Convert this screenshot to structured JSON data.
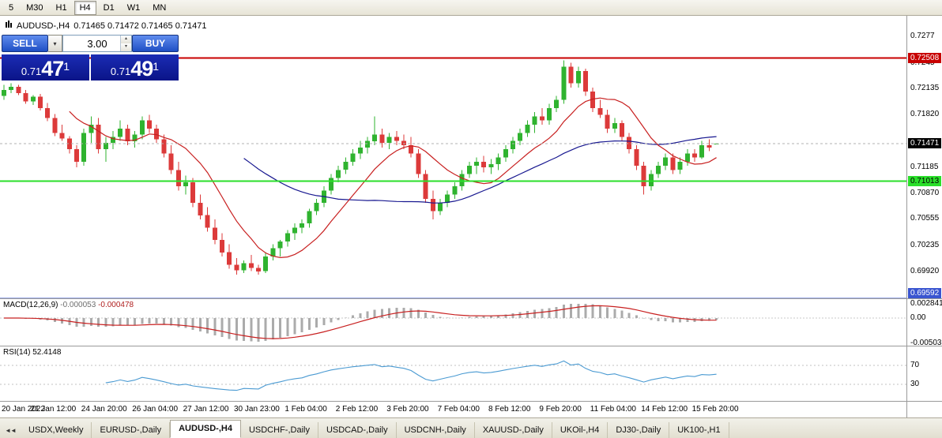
{
  "toolbar": {
    "timeframes": [
      {
        "label": "5",
        "active": false
      },
      {
        "label": "M30",
        "active": false
      },
      {
        "label": "H1",
        "active": false
      },
      {
        "label": "H4",
        "active": true
      },
      {
        "label": "D1",
        "active": false
      },
      {
        "label": "W1",
        "active": false
      },
      {
        "label": "MN",
        "active": false
      }
    ]
  },
  "chart": {
    "symbol_title": "AUDUSD-,H4",
    "ohlc_text": "0.71465 0.71472 0.71465 0.71471",
    "trade_panel": {
      "sell_label": "SELL",
      "buy_label": "BUY",
      "volume": "3.00",
      "sell_price_prefix": "0.71",
      "sell_price_big": "47",
      "sell_price_sup": "1",
      "buy_price_prefix": "0.71",
      "buy_price_big": "49",
      "buy_price_sup": "1"
    }
  },
  "chart_data": {
    "type": "candlestick",
    "title": "AUDUSD-,H4",
    "symbol": "AUDUSD",
    "timeframe": "H4",
    "ylim": [
      0.69592,
      0.7302
    ],
    "price_axis_labels": [
      "0.7277",
      "0.7245",
      "0.72135",
      "0.71820",
      "0.71185",
      "0.70870",
      "0.70555",
      "0.70235",
      "0.69920"
    ],
    "hlines": [
      {
        "name": "resistance-line",
        "value": 0.72508,
        "label": "0.72508",
        "color": "#C80000",
        "width": 1.6,
        "box_bg": "#C80000",
        "box_fg": "#FFFFFF"
      },
      {
        "name": "support-line",
        "value": 0.71013,
        "label": "0.71013",
        "color": "#2ADF2A",
        "width": 2,
        "box_bg": "#2ADF2A",
        "box_fg": "#000000"
      },
      {
        "name": "low-line",
        "value": 0.69592,
        "label": "0.69592",
        "color": "#3A55D0",
        "width": 1.4,
        "box_bg": "#3A55D0",
        "box_fg": "#FFFFFF"
      }
    ],
    "bid_marker": {
      "value": 0.71471,
      "label": "0.71471",
      "box_bg": "#000000",
      "box_fg": "#FFFFFF"
    },
    "moving_averages": [
      {
        "period": 34,
        "color": "#181890",
        "name": "ma-slow"
      },
      {
        "period": 10,
        "color": "#C82020",
        "name": "ma-fast"
      }
    ],
    "time_labels": [
      {
        "i": 0,
        "t": "20 Jan 2022"
      },
      {
        "i": 7,
        "t": "21 Jan 12:00"
      },
      {
        "i": 14,
        "t": "24 Jan 20:00"
      },
      {
        "i": 21,
        "t": "26 Jan 04:00"
      },
      {
        "i": 28,
        "t": "27 Jan 12:00"
      },
      {
        "i": 35,
        "t": "30 Jan 23:00"
      },
      {
        "i": 42,
        "t": "1 Feb 04:00"
      },
      {
        "i": 49,
        "t": "2 Feb 12:00"
      },
      {
        "i": 56,
        "t": "3 Feb 20:00"
      },
      {
        "i": 63,
        "t": "7 Feb 04:00"
      },
      {
        "i": 70,
        "t": "8 Feb 12:00"
      },
      {
        "i": 77,
        "t": "9 Feb 20:00"
      },
      {
        "i": 84,
        "t": "11 Feb 04:00"
      },
      {
        "i": 91,
        "t": "14 Feb 12:00"
      },
      {
        "i": 98,
        "t": "15 Feb 20:00"
      }
    ],
    "candles": [
      [
        0.7205,
        0.7218,
        0.72,
        0.7212
      ],
      [
        0.7212,
        0.722,
        0.7208,
        0.7216
      ],
      [
        0.7216,
        0.7218,
        0.7206,
        0.7208
      ],
      [
        0.7208,
        0.7212,
        0.7195,
        0.7198
      ],
      [
        0.7198,
        0.7206,
        0.7194,
        0.7204
      ],
      [
        0.7204,
        0.7207,
        0.7187,
        0.719
      ],
      [
        0.719,
        0.7196,
        0.7174,
        0.7178
      ],
      [
        0.7178,
        0.7183,
        0.7156,
        0.716
      ],
      [
        0.716,
        0.717,
        0.715,
        0.7153
      ],
      [
        0.7153,
        0.7156,
        0.7135,
        0.714
      ],
      [
        0.714,
        0.7145,
        0.7118,
        0.7125
      ],
      [
        0.7125,
        0.7165,
        0.712,
        0.716
      ],
      [
        0.716,
        0.718,
        0.7148,
        0.717
      ],
      [
        0.717,
        0.7178,
        0.7135,
        0.714
      ],
      [
        0.714,
        0.7155,
        0.7125,
        0.7148
      ],
      [
        0.7148,
        0.7162,
        0.714,
        0.7155
      ],
      [
        0.7155,
        0.7175,
        0.715,
        0.7165
      ],
      [
        0.7165,
        0.717,
        0.7145,
        0.715
      ],
      [
        0.715,
        0.7162,
        0.7142,
        0.7158
      ],
      [
        0.7158,
        0.718,
        0.7152,
        0.7175
      ],
      [
        0.7175,
        0.7182,
        0.716,
        0.7165
      ],
      [
        0.7165,
        0.717,
        0.7148,
        0.7152
      ],
      [
        0.7152,
        0.7158,
        0.713,
        0.7135
      ],
      [
        0.7135,
        0.7145,
        0.711,
        0.7115
      ],
      [
        0.7115,
        0.7125,
        0.709,
        0.7095
      ],
      [
        0.7095,
        0.7108,
        0.7085,
        0.71
      ],
      [
        0.71,
        0.7105,
        0.707,
        0.7075
      ],
      [
        0.7075,
        0.7085,
        0.7055,
        0.706
      ],
      [
        0.706,
        0.707,
        0.704,
        0.7045
      ],
      [
        0.7045,
        0.7055,
        0.7025,
        0.703
      ],
      [
        0.703,
        0.7038,
        0.701,
        0.7015
      ],
      [
        0.7015,
        0.7025,
        0.6995,
        0.7
      ],
      [
        0.7,
        0.7008,
        0.6988,
        0.6993
      ],
      [
        0.6993,
        0.7005,
        0.699,
        0.7002
      ],
      [
        0.7002,
        0.7012,
        0.6992,
        0.6996
      ],
      [
        0.6996,
        0.7,
        0.6988,
        0.6992
      ],
      [
        0.6992,
        0.7015,
        0.699,
        0.701
      ],
      [
        0.701,
        0.7025,
        0.7005,
        0.702
      ],
      [
        0.702,
        0.703,
        0.701,
        0.7028
      ],
      [
        0.7028,
        0.7042,
        0.7022,
        0.7038
      ],
      [
        0.7038,
        0.705,
        0.703,
        0.7045
      ],
      [
        0.7045,
        0.7055,
        0.7038,
        0.705
      ],
      [
        0.705,
        0.7068,
        0.7045,
        0.7065
      ],
      [
        0.7065,
        0.708,
        0.706,
        0.7075
      ],
      [
        0.7075,
        0.7095,
        0.707,
        0.709
      ],
      [
        0.709,
        0.711,
        0.7085,
        0.7105
      ],
      [
        0.7105,
        0.712,
        0.71,
        0.7115
      ],
      [
        0.7115,
        0.713,
        0.711,
        0.7125
      ],
      [
        0.7125,
        0.714,
        0.712,
        0.7135
      ],
      [
        0.7135,
        0.715,
        0.7128,
        0.7142
      ],
      [
        0.7142,
        0.7155,
        0.7135,
        0.715
      ],
      [
        0.715,
        0.718,
        0.7145,
        0.7158
      ],
      [
        0.7158,
        0.7165,
        0.7142,
        0.7148
      ],
      [
        0.7148,
        0.716,
        0.714,
        0.7155
      ],
      [
        0.7155,
        0.7162,
        0.7145,
        0.715
      ],
      [
        0.715,
        0.7158,
        0.714,
        0.7145
      ],
      [
        0.7145,
        0.7155,
        0.713,
        0.7135
      ],
      [
        0.7135,
        0.714,
        0.7105,
        0.711
      ],
      [
        0.711,
        0.7115,
        0.7075,
        0.708
      ],
      [
        0.708,
        0.709,
        0.7055,
        0.7065
      ],
      [
        0.7065,
        0.708,
        0.706,
        0.7075
      ],
      [
        0.7075,
        0.709,
        0.707,
        0.7085
      ],
      [
        0.7085,
        0.71,
        0.708,
        0.7095
      ],
      [
        0.7095,
        0.7115,
        0.709,
        0.711
      ],
      [
        0.711,
        0.7125,
        0.7105,
        0.712
      ],
      [
        0.712,
        0.713,
        0.711,
        0.7125
      ],
      [
        0.7125,
        0.7132,
        0.7112,
        0.7118
      ],
      [
        0.7118,
        0.7128,
        0.711,
        0.7122
      ],
      [
        0.7122,
        0.7135,
        0.7115,
        0.713
      ],
      [
        0.713,
        0.7145,
        0.7125,
        0.714
      ],
      [
        0.714,
        0.7155,
        0.7135,
        0.715
      ],
      [
        0.715,
        0.7165,
        0.7145,
        0.716
      ],
      [
        0.716,
        0.7175,
        0.7155,
        0.717
      ],
      [
        0.717,
        0.7185,
        0.716,
        0.718
      ],
      [
        0.718,
        0.719,
        0.717,
        0.7175
      ],
      [
        0.7175,
        0.7195,
        0.717,
        0.719
      ],
      [
        0.719,
        0.7205,
        0.7185,
        0.72
      ],
      [
        0.72,
        0.7248,
        0.7195,
        0.724
      ],
      [
        0.724,
        0.7245,
        0.7215,
        0.722
      ],
      [
        0.722,
        0.724,
        0.7215,
        0.7235
      ],
      [
        0.7235,
        0.7238,
        0.7205,
        0.721
      ],
      [
        0.721,
        0.7215,
        0.7185,
        0.719
      ],
      [
        0.719,
        0.72,
        0.7178,
        0.7182
      ],
      [
        0.7182,
        0.7188,
        0.716,
        0.7165
      ],
      [
        0.7165,
        0.7178,
        0.716,
        0.7172
      ],
      [
        0.7172,
        0.7175,
        0.715,
        0.7155
      ],
      [
        0.7155,
        0.716,
        0.7135,
        0.714
      ],
      [
        0.714,
        0.7145,
        0.7115,
        0.712
      ],
      [
        0.712,
        0.7125,
        0.7085,
        0.7095
      ],
      [
        0.7095,
        0.7115,
        0.709,
        0.711
      ],
      [
        0.711,
        0.7125,
        0.7105,
        0.712
      ],
      [
        0.712,
        0.7135,
        0.7115,
        0.713
      ],
      [
        0.713,
        0.7135,
        0.711,
        0.7115
      ],
      [
        0.7115,
        0.713,
        0.711,
        0.7125
      ],
      [
        0.7125,
        0.714,
        0.712,
        0.7135
      ],
      [
        0.7135,
        0.714,
        0.7125,
        0.713
      ],
      [
        0.713,
        0.715,
        0.7128,
        0.7145
      ],
      [
        0.7145,
        0.7152,
        0.7138,
        0.7142
      ],
      [
        0.71465,
        0.71472,
        0.71465,
        0.71471
      ]
    ],
    "indicators": {
      "macd": {
        "label": "MACD(12,26,9)",
        "value_main": "-0.000053",
        "value_signal": "-0.000478",
        "fast": 12,
        "slow": 26,
        "signal": 9,
        "range": [
          -0.005032,
          0.002841
        ],
        "scale_labels": [
          {
            "value": 0.002841,
            "label": "0.002841"
          },
          {
            "value": 0,
            "label": "0.00"
          },
          {
            "value": -0.005032,
            "label": "-0.005032"
          }
        ],
        "histogram_color": "#ABABAB",
        "signal_color": "#C82020"
      },
      "rsi": {
        "label": "RSI(14)",
        "value": "52.4148",
        "period": 14,
        "levels": [
          {
            "value": 70,
            "label": "70"
          },
          {
            "value": 30,
            "label": "30"
          }
        ],
        "color": "#4A9AD2",
        "level_color": "#C0C0C0"
      }
    }
  },
  "tabs": [
    {
      "label": "USDX,Weekly",
      "active": false
    },
    {
      "label": "EURUSD-,Daily",
      "active": false
    },
    {
      "label": "AUDUSD-,H4",
      "active": true
    },
    {
      "label": "USDCHF-,Daily",
      "active": false
    },
    {
      "label": "USDCAD-,Daily",
      "active": false
    },
    {
      "label": "USDCNH-,Daily",
      "active": false
    },
    {
      "label": "XAUUSD-,Daily",
      "active": false
    },
    {
      "label": "UKOil-,H4",
      "active": false
    },
    {
      "label": "DJ30-,Daily",
      "active": false
    },
    {
      "label": "UK100-,H1",
      "active": false
    }
  ],
  "colors": {
    "bull": "#2FB32F",
    "bear": "#DC3A3A",
    "bid_line": "#B0B0B0"
  }
}
